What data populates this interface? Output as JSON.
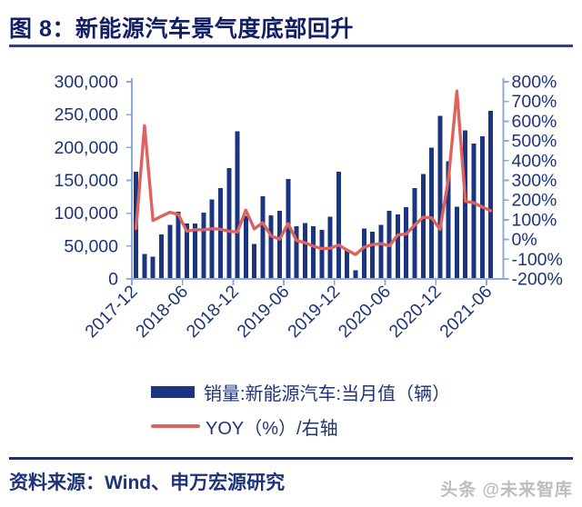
{
  "header": {
    "title": "图 8：新能源汽车景气度底部回升"
  },
  "footer": {
    "source": "资料来源：Wind、申万宏源研究",
    "watermark": "头条 @未来智库"
  },
  "legend": {
    "items": [
      {
        "swatch": "bar",
        "label": "销量:新能源汽车:当月值（辆）"
      },
      {
        "swatch": "line",
        "label": "YOY（%）/右轴"
      }
    ]
  },
  "colors": {
    "bar": "#1c3580",
    "line": "#e0625f",
    "axis": "#8ea9d8",
    "label": "#1e3478",
    "title": "#121f66",
    "rule": "#2c3d96",
    "divider": "#1b2f80",
    "watermark": "#bdbdbd",
    "bg": "#ffffff"
  },
  "chart_data": {
    "type": "combo",
    "title": "图 8：新能源汽车景气度底部回升",
    "x": [
      "2017-12",
      "2018-01",
      "2018-02",
      "2018-03",
      "2018-04",
      "2018-05",
      "2018-06",
      "2018-07",
      "2018-08",
      "2018-09",
      "2018-10",
      "2018-11",
      "2018-12",
      "2019-01",
      "2019-02",
      "2019-03",
      "2019-04",
      "2019-05",
      "2019-06",
      "2019-07",
      "2019-08",
      "2019-09",
      "2019-10",
      "2019-11",
      "2019-12",
      "2020-01",
      "2020-02",
      "2020-03",
      "2020-04",
      "2020-05",
      "2020-06",
      "2020-07",
      "2020-08",
      "2020-09",
      "2020-10",
      "2020-11",
      "2020-12",
      "2021-01",
      "2021-02",
      "2021-03",
      "2021-04",
      "2021-05",
      "2021-06"
    ],
    "series": [
      {
        "name": "销量:新能源汽车:当月值（辆）",
        "type": "bar",
        "axis": "left",
        "values": [
          163000,
          38000,
          34000,
          68000,
          82000,
          102000,
          84000,
          84000,
          101000,
          121000,
          138000,
          169000,
          225000,
          96000,
          53000,
          126000,
          97000,
          104000,
          152000,
          80000,
          85000,
          80000,
          75000,
          95000,
          163000,
          44000,
          13000,
          77000,
          72000,
          82000,
          104000,
          98000,
          109000,
          138000,
          160000,
          200000,
          248000,
          179000,
          110000,
          226000,
          206000,
          217000,
          256000
        ]
      },
      {
        "name": "YOY（%）/右轴",
        "type": "line",
        "axis": "right",
        "values": [
          56,
          577,
          96,
          118,
          138,
          127,
          42,
          50,
          49,
          55,
          52,
          42,
          38,
          149,
          54,
          85,
          18,
          2,
          81,
          -5,
          -16,
          -34,
          -46,
          -44,
          -28,
          -54,
          -76,
          -39,
          -26,
          -21,
          -32,
          23,
          28,
          73,
          113,
          110,
          52,
          307,
          753,
          194,
          186,
          165,
          146
        ]
      }
    ],
    "left_axis": {
      "min": 0,
      "max": 300000,
      "step": 50000,
      "tick_labels": [
        "0",
        "50,000",
        "100,000",
        "150,000",
        "200,000",
        "250,000",
        "300,000"
      ]
    },
    "right_axis": {
      "min": -200,
      "max": 800,
      "step": 100,
      "tick_labels": [
        "-200%",
        "-100%",
        "0%",
        "100%",
        "200%",
        "300%",
        "400%",
        "500%",
        "600%",
        "700%",
        "800%"
      ]
    },
    "x_tick_every": 6,
    "x_tick_labels": [
      "2017-12",
      "2018-06",
      "2018-12",
      "2019-06",
      "2019-12",
      "2020-06",
      "2020-12",
      "2021-06"
    ],
    "grid": false,
    "legend_position": "bottom"
  }
}
